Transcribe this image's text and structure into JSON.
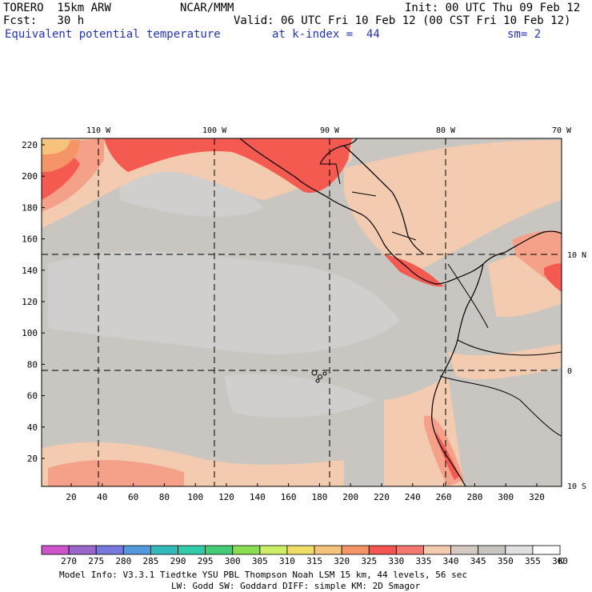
{
  "header": {
    "model": "TORERO  15km ARW",
    "center": "NCAR/MMM",
    "init": "Init: 00 UTC Thu 09 Feb 12",
    "fcst": "Fcst:   30 h",
    "valid": "Valid: 06 UTC Fri 10 Feb 12 (00 CST Fri 10 Feb 12)",
    "field": "Equivalent potential temperature",
    "level": "at k-index =  44",
    "smooth": "sm= 2"
  },
  "map": {
    "lon_labels": [
      "110 W",
      "100 W",
      "90 W",
      "80 W",
      "70 W"
    ],
    "lat_labels": [
      "10 N",
      "0",
      "10 S"
    ],
    "y_ticks": [
      "220",
      "200",
      "180",
      "160",
      "140",
      "120",
      "100",
      "80",
      "60",
      "40",
      "20"
    ],
    "x_ticks": [
      "20",
      "40",
      "60",
      "80",
      "100",
      "120",
      "140",
      "160",
      "180",
      "200",
      "220",
      "240",
      "260",
      "280",
      "300",
      "320"
    ],
    "background_color": "#c9c5c1"
  },
  "colorbar": {
    "labels": [
      "270",
      "275",
      "280",
      "285",
      "290",
      "295",
      "300",
      "305",
      "310",
      "315",
      "320",
      "325",
      "330",
      "335",
      "340",
      "345",
      "350",
      "355",
      "360"
    ],
    "unit": "K",
    "colors": [
      "#cc55cc",
      "#9966cc",
      "#7777dd",
      "#5599dd",
      "#33bbbb",
      "#33ccaa",
      "#44cc77",
      "#88dd55",
      "#ccee66",
      "#eedd66",
      "#f5c47a",
      "#f59466",
      "#f55550",
      "#f57870",
      "#f5cbb0",
      "#d6c9c1",
      "#c9c5c1",
      "#e0e0e0",
      "#ffffff"
    ]
  },
  "footer": {
    "line1": "Model Info: V3.3.1    Tiedtke YSU PBL  Thompson    Noah LSM  15 km,   44 levels,   56 sec",
    "line2": "LW: Godd SW: Goddard DIFF: simple KM: 2D Smagor"
  }
}
